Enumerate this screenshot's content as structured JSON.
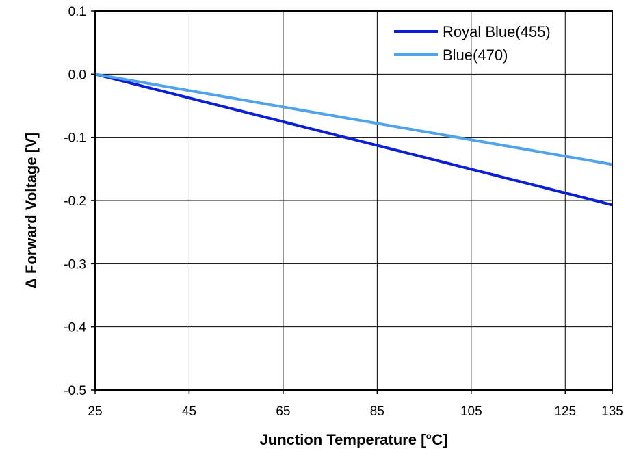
{
  "chart_data": {
    "type": "line",
    "title": "",
    "xlabel": "Junction Temperature [°C]",
    "ylabel": "Δ  Forward Voltage [V]",
    "xlim": [
      25,
      135
    ],
    "ylim": [
      -0.5,
      0.1
    ],
    "xticks": [
      25,
      45,
      65,
      85,
      105,
      125,
      135
    ],
    "xtick_labels": [
      "25",
      "45",
      "65",
      "85",
      "105",
      "125",
      "135"
    ],
    "yticks": [
      0.1,
      0.0,
      -0.1,
      -0.2,
      -0.3,
      -0.4,
      -0.5
    ],
    "ytick_labels": [
      "0.1",
      "0.0",
      "-0.1",
      "-0.2",
      "-0.3",
      "-0.4",
      "-0.5"
    ],
    "grid": true,
    "legend_position": "top-right",
    "series": [
      {
        "name": "Royal Blue(455)",
        "color": "#0a1fd6",
        "x": [
          25,
          135
        ],
        "y": [
          0.0,
          -0.207
        ]
      },
      {
        "name": "Blue(470)",
        "color": "#4fa3ec",
        "x": [
          25,
          135
        ],
        "y": [
          0.0,
          -0.143
        ]
      }
    ]
  }
}
